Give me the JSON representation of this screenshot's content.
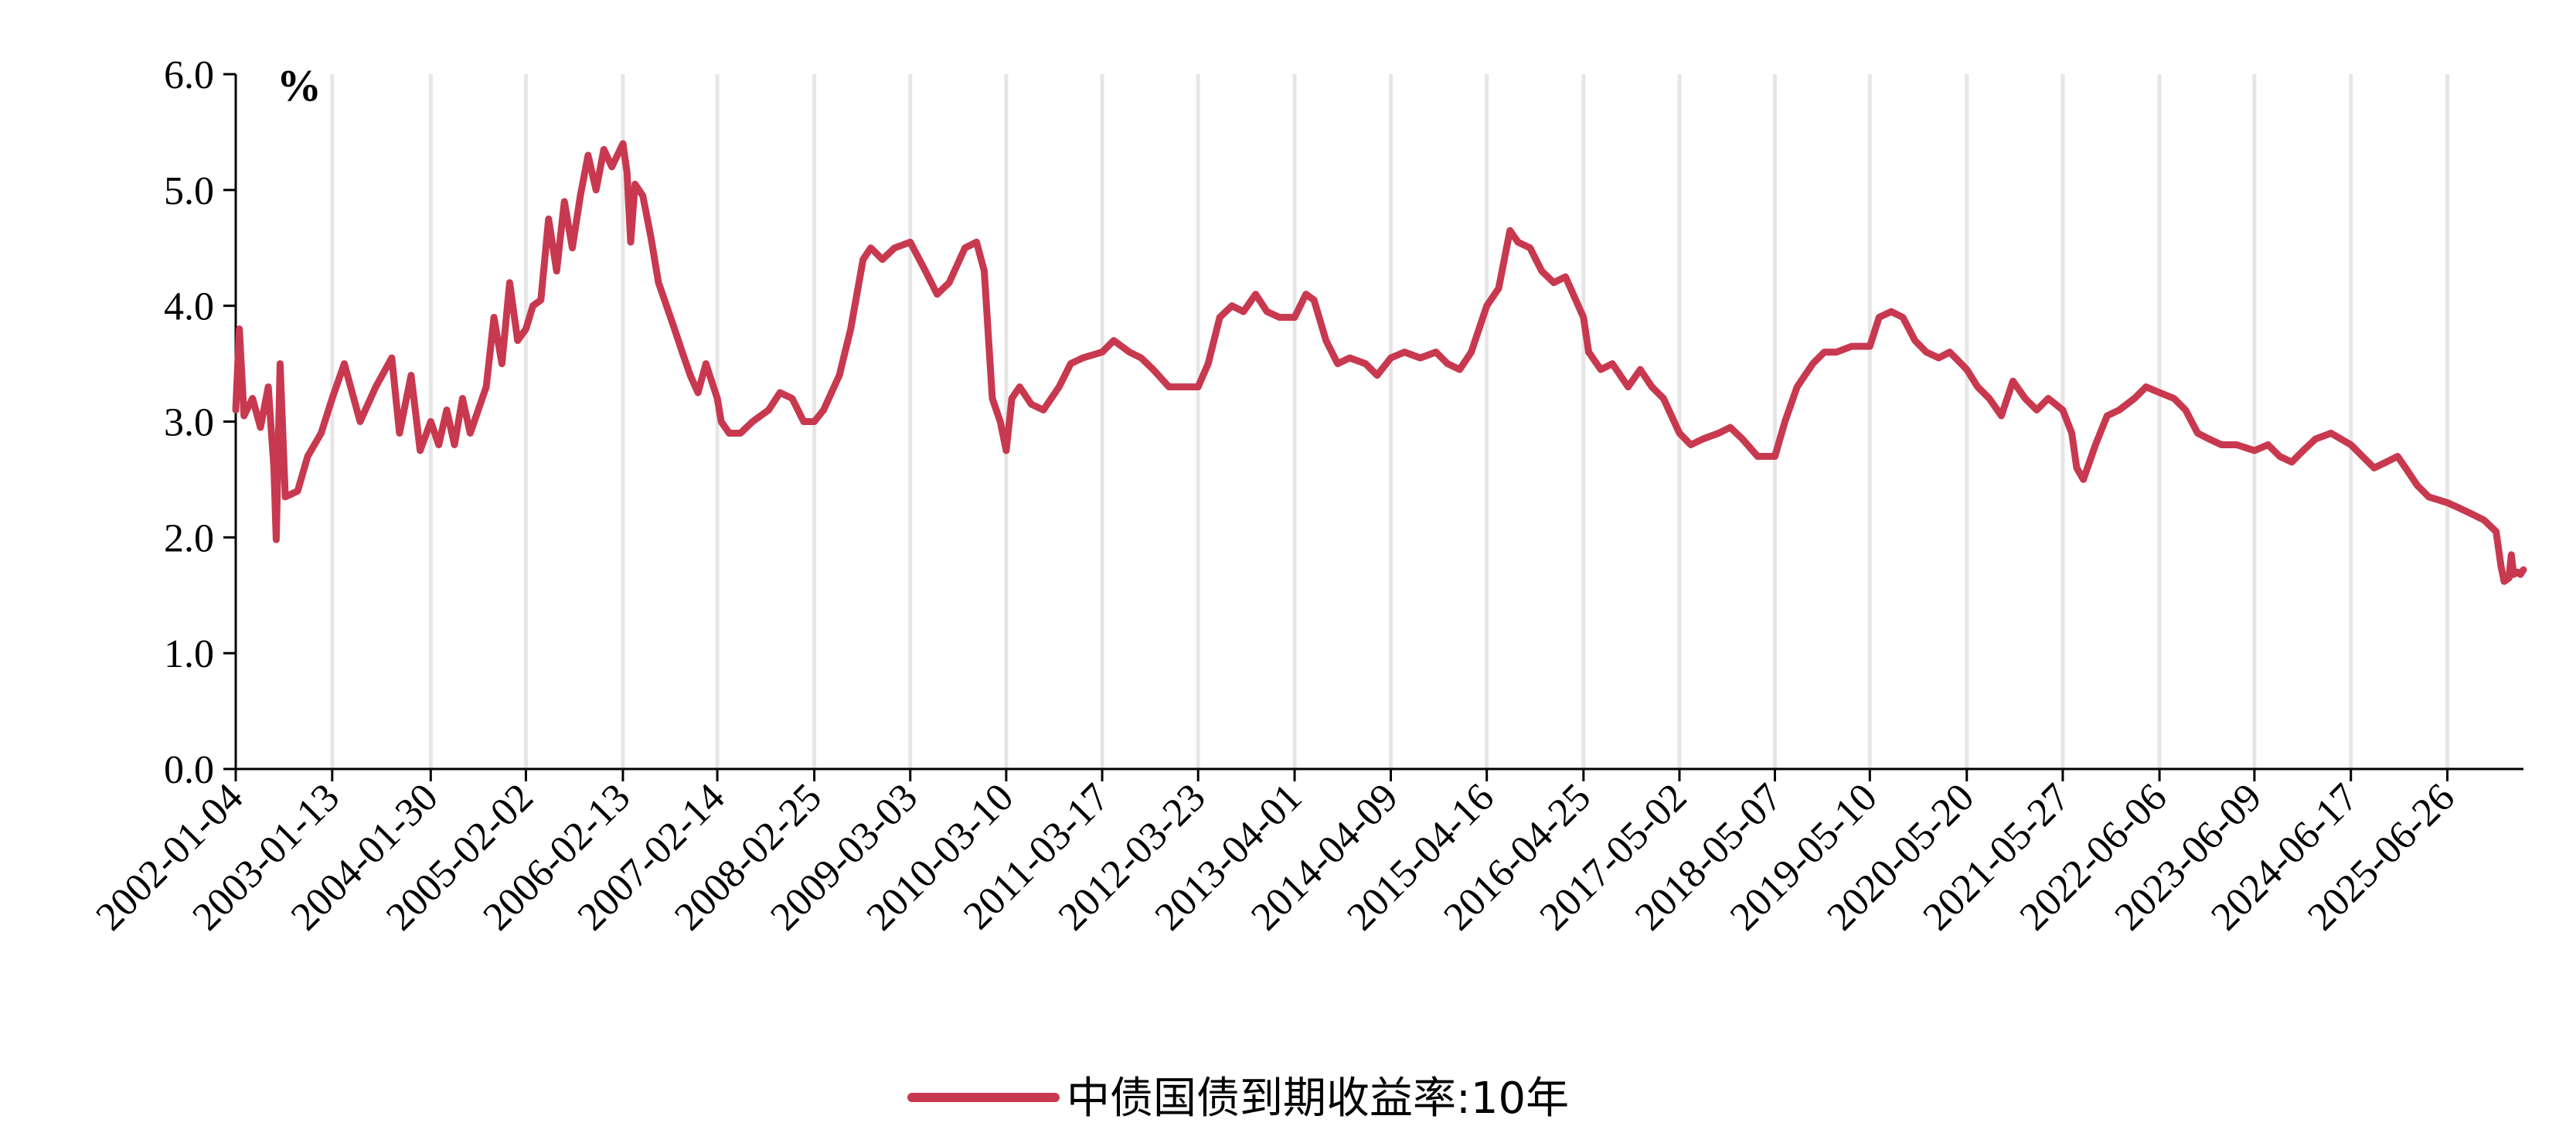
{
  "chart_data": {
    "type": "line",
    "title": "",
    "xlabel": "",
    "ylabel": "",
    "unit_label": "%",
    "ylim": [
      0,
      6
    ],
    "yticks": [
      "0.0",
      "1.0",
      "2.0",
      "3.0",
      "4.0",
      "5.0",
      "6.0"
    ],
    "x_tick_labels": [
      "2002-01-04",
      "2003-01-13",
      "2004-01-30",
      "2005-02-02",
      "2006-02-13",
      "2007-02-14",
      "2008-02-25",
      "2009-03-03",
      "2010-03-10",
      "2011-03-17",
      "2012-03-23",
      "2013-04-01",
      "2014-04-09",
      "2015-04-16",
      "2016-04-25",
      "2017-05-02",
      "2018-05-07",
      "2019-05-10",
      "2020-05-20",
      "2021-05-27",
      "2022-06-06",
      "2023-06-09",
      "2024-06-17",
      "2025-06-26"
    ],
    "xlim": [
      "2002-01-04",
      "2026-04-17"
    ],
    "grid": "vertical",
    "legend_position": "bottom-center",
    "series": [
      {
        "name": "中债国债到期收益率:10年",
        "color": "#C8394F",
        "points": [
          [
            "2002-01-04",
            3.1
          ],
          [
            "2002-01-18",
            3.8
          ],
          [
            "2002-02-05",
            3.05
          ],
          [
            "2002-03-10",
            3.2
          ],
          [
            "2002-04-10",
            2.95
          ],
          [
            "2002-05-10",
            3.3
          ],
          [
            "2002-06-01",
            2.6
          ],
          [
            "2002-06-10",
            1.98
          ],
          [
            "2002-06-25",
            3.5
          ],
          [
            "2002-07-15",
            2.35
          ],
          [
            "2002-09-01",
            2.4
          ],
          [
            "2002-10-10",
            2.7
          ],
          [
            "2002-12-01",
            2.9
          ],
          [
            "2003-01-13",
            3.2
          ],
          [
            "2003-03-01",
            3.5
          ],
          [
            "2003-05-01",
            3.0
          ],
          [
            "2003-07-01",
            3.3
          ],
          [
            "2003-09-01",
            3.55
          ],
          [
            "2003-10-01",
            2.9
          ],
          [
            "2003-11-15",
            3.4
          ],
          [
            "2003-12-20",
            2.75
          ],
          [
            "2004-01-30",
            3.0
          ],
          [
            "2004-03-01",
            2.8
          ],
          [
            "2004-04-01",
            3.1
          ],
          [
            "2004-05-01",
            2.8
          ],
          [
            "2004-06-01",
            3.2
          ],
          [
            "2004-07-01",
            2.9
          ],
          [
            "2004-09-01",
            3.3
          ],
          [
            "2004-10-01",
            3.9
          ],
          [
            "2004-11-01",
            3.5
          ],
          [
            "2004-12-01",
            4.2
          ],
          [
            "2005-01-01",
            3.7
          ],
          [
            "2005-02-02",
            3.8
          ],
          [
            "2005-03-01",
            4.0
          ],
          [
            "2005-04-01",
            4.05
          ],
          [
            "2005-05-01",
            4.75
          ],
          [
            "2005-06-01",
            4.3
          ],
          [
            "2005-07-01",
            4.9
          ],
          [
            "2005-08-01",
            4.5
          ],
          [
            "2005-09-01",
            4.95
          ],
          [
            "2005-10-01",
            5.3
          ],
          [
            "2005-11-01",
            5.0
          ],
          [
            "2005-12-01",
            5.35
          ],
          [
            "2006-01-01",
            5.2
          ],
          [
            "2006-02-13",
            5.4
          ],
          [
            "2006-03-01",
            5.15
          ],
          [
            "2006-03-15",
            4.55
          ],
          [
            "2006-04-01",
            5.05
          ],
          [
            "2006-05-01",
            4.95
          ],
          [
            "2006-06-01",
            4.6
          ],
          [
            "2006-07-01",
            4.2
          ],
          [
            "2006-08-01",
            4.0
          ],
          [
            "2006-09-01",
            3.8
          ],
          [
            "2006-10-01",
            3.6
          ],
          [
            "2006-11-01",
            3.4
          ],
          [
            "2006-12-01",
            3.25
          ],
          [
            "2007-01-01",
            3.5
          ],
          [
            "2007-02-14",
            3.2
          ],
          [
            "2007-03-01",
            3.0
          ],
          [
            "2007-04-01",
            2.9
          ],
          [
            "2007-05-15",
            2.9
          ],
          [
            "2007-07-01",
            3.0
          ],
          [
            "2007-09-01",
            3.1
          ],
          [
            "2007-10-15",
            3.25
          ],
          [
            "2007-12-01",
            3.2
          ],
          [
            "2008-01-15",
            3.0
          ],
          [
            "2008-02-25",
            3.0
          ],
          [
            "2008-04-01",
            3.1
          ],
          [
            "2008-06-01",
            3.4
          ],
          [
            "2008-07-15",
            3.8
          ],
          [
            "2008-09-01",
            4.4
          ],
          [
            "2008-10-01",
            4.5
          ],
          [
            "2008-11-15",
            4.4
          ],
          [
            "2009-01-01",
            4.5
          ],
          [
            "2009-03-03",
            4.55
          ],
          [
            "2009-05-01",
            4.3
          ],
          [
            "2009-06-15",
            4.1
          ],
          [
            "2009-08-01",
            4.2
          ],
          [
            "2009-10-01",
            4.5
          ],
          [
            "2009-11-15",
            4.55
          ],
          [
            "2009-12-15",
            4.3
          ],
          [
            "2010-01-15",
            3.2
          ],
          [
            "2010-02-15",
            3.0
          ],
          [
            "2010-03-10",
            2.75
          ],
          [
            "2010-04-01",
            3.2
          ],
          [
            "2010-05-01",
            3.3
          ],
          [
            "2010-06-15",
            3.15
          ],
          [
            "2010-08-01",
            3.1
          ],
          [
            "2010-10-01",
            3.3
          ],
          [
            "2010-11-15",
            3.5
          ],
          [
            "2011-01-01",
            3.55
          ],
          [
            "2011-03-17",
            3.6
          ],
          [
            "2011-05-01",
            3.7
          ],
          [
            "2011-07-01",
            3.6
          ],
          [
            "2011-08-15",
            3.55
          ],
          [
            "2011-10-01",
            3.45
          ],
          [
            "2011-12-01",
            3.3
          ],
          [
            "2012-01-15",
            3.3
          ],
          [
            "2012-03-23",
            3.3
          ],
          [
            "2012-05-01",
            3.5
          ],
          [
            "2012-06-15",
            3.9
          ],
          [
            "2012-08-01",
            4.0
          ],
          [
            "2012-09-15",
            3.95
          ],
          [
            "2012-11-01",
            4.1
          ],
          [
            "2012-12-15",
            3.95
          ],
          [
            "2013-02-01",
            3.9
          ],
          [
            "2013-04-01",
            3.9
          ],
          [
            "2013-05-15",
            4.1
          ],
          [
            "2013-06-15",
            4.05
          ],
          [
            "2013-08-01",
            3.7
          ],
          [
            "2013-09-15",
            3.5
          ],
          [
            "2013-11-01",
            3.55
          ],
          [
            "2014-01-01",
            3.5
          ],
          [
            "2014-02-15",
            3.4
          ],
          [
            "2014-04-09",
            3.55
          ],
          [
            "2014-06-01",
            3.6
          ],
          [
            "2014-08-01",
            3.55
          ],
          [
            "2014-10-01",
            3.6
          ],
          [
            "2014-11-15",
            3.5
          ],
          [
            "2015-01-01",
            3.45
          ],
          [
            "2015-02-15",
            3.6
          ],
          [
            "2015-04-16",
            4.0
          ],
          [
            "2015-06-01",
            4.15
          ],
          [
            "2015-07-15",
            4.65
          ],
          [
            "2015-08-15",
            4.55
          ],
          [
            "2015-10-01",
            4.5
          ],
          [
            "2015-11-15",
            4.3
          ],
          [
            "2016-01-01",
            4.2
          ],
          [
            "2016-02-15",
            4.25
          ],
          [
            "2016-04-25",
            3.9
          ],
          [
            "2016-05-15",
            3.6
          ],
          [
            "2016-07-01",
            3.45
          ],
          [
            "2016-08-15",
            3.5
          ],
          [
            "2016-10-15",
            3.3
          ],
          [
            "2016-12-01",
            3.45
          ],
          [
            "2017-01-15",
            3.3
          ],
          [
            "2017-03-01",
            3.2
          ],
          [
            "2017-05-02",
            2.9
          ],
          [
            "2017-06-15",
            2.8
          ],
          [
            "2017-08-01",
            2.85
          ],
          [
            "2017-10-01",
            2.9
          ],
          [
            "2017-11-15",
            2.95
          ],
          [
            "2018-01-01",
            2.85
          ],
          [
            "2018-03-01",
            2.7
          ],
          [
            "2018-05-07",
            2.7
          ],
          [
            "2018-06-15",
            3.0
          ],
          [
            "2018-08-01",
            3.3
          ],
          [
            "2018-10-01",
            3.5
          ],
          [
            "2018-11-15",
            3.6
          ],
          [
            "2019-01-01",
            3.6
          ],
          [
            "2019-03-01",
            3.65
          ],
          [
            "2019-05-10",
            3.65
          ],
          [
            "2019-06-15",
            3.9
          ],
          [
            "2019-08-01",
            3.95
          ],
          [
            "2019-09-15",
            3.9
          ],
          [
            "2019-11-01",
            3.7
          ],
          [
            "2019-12-15",
            3.6
          ],
          [
            "2020-02-01",
            3.55
          ],
          [
            "2020-03-15",
            3.6
          ],
          [
            "2020-05-20",
            3.45
          ],
          [
            "2020-07-01",
            3.3
          ],
          [
            "2020-08-15",
            3.2
          ],
          [
            "2020-10-01",
            3.05
          ],
          [
            "2020-11-15",
            3.35
          ],
          [
            "2021-01-01",
            3.2
          ],
          [
            "2021-02-15",
            3.1
          ],
          [
            "2021-04-01",
            3.2
          ],
          [
            "2021-05-27",
            3.1
          ],
          [
            "2021-07-01",
            2.9
          ],
          [
            "2021-07-20",
            2.6
          ],
          [
            "2021-08-15",
            2.5
          ],
          [
            "2021-10-01",
            2.8
          ],
          [
            "2021-11-15",
            3.05
          ],
          [
            "2022-01-01",
            3.1
          ],
          [
            "2022-03-01",
            3.2
          ],
          [
            "2022-04-15",
            3.3
          ],
          [
            "2022-06-06",
            3.25
          ],
          [
            "2022-08-01",
            3.2
          ],
          [
            "2022-09-15",
            3.1
          ],
          [
            "2022-11-01",
            2.9
          ],
          [
            "2022-12-15",
            2.85
          ],
          [
            "2023-02-01",
            2.8
          ],
          [
            "2023-04-01",
            2.8
          ],
          [
            "2023-06-09",
            2.75
          ],
          [
            "2023-08-01",
            2.8
          ],
          [
            "2023-09-15",
            2.7
          ],
          [
            "2023-11-01",
            2.65
          ],
          [
            "2023-12-15",
            2.75
          ],
          [
            "2024-02-01",
            2.85
          ],
          [
            "2024-04-01",
            2.9
          ],
          [
            "2024-06-17",
            2.8
          ],
          [
            "2024-08-01",
            2.7
          ],
          [
            "2024-09-15",
            2.6
          ],
          [
            "2024-11-01",
            2.65
          ],
          [
            "2024-12-15",
            2.7
          ],
          [
            "2025-01-15",
            2.6
          ],
          [
            "2025-03-01",
            2.45
          ],
          [
            "2025-04-15",
            2.35
          ],
          [
            "2025-06-26",
            2.3
          ],
          [
            "2025-08-15",
            2.25
          ],
          [
            "2025-10-01",
            2.2
          ],
          [
            "2025-11-15",
            2.15
          ],
          [
            "2026-01-01",
            2.05
          ],
          [
            "2026-01-20",
            1.75
          ],
          [
            "2026-02-01",
            1.62
          ],
          [
            "2026-02-20",
            1.65
          ],
          [
            "2026-03-01",
            1.85
          ],
          [
            "2026-03-10",
            1.68
          ],
          [
            "2026-03-25",
            1.7
          ],
          [
            "2026-04-05",
            1.68
          ],
          [
            "2026-04-17",
            1.72
          ]
        ]
      }
    ]
  }
}
